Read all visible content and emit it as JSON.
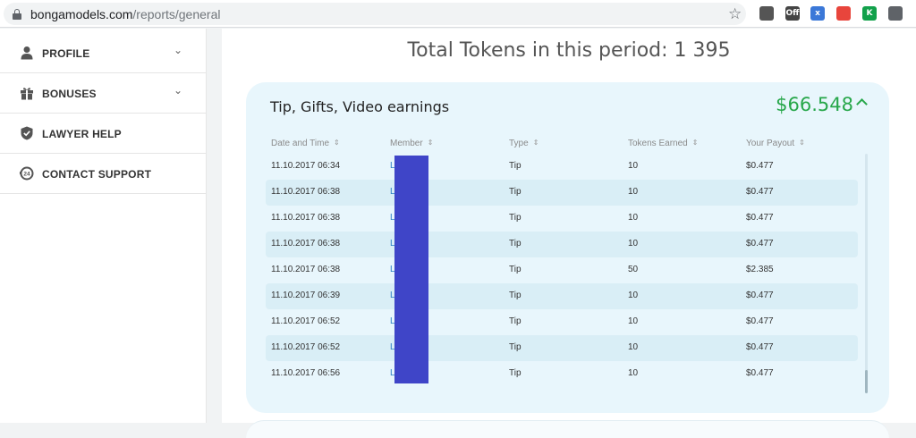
{
  "browser": {
    "url_domain": "bongamodels.com",
    "url_path": "/reports/general",
    "star_icon": "star-outline-icon",
    "extensions": [
      {
        "name": "reader-ext-icon",
        "label": "",
        "color": "#555555"
      },
      {
        "name": "adblock-off-ext-icon",
        "label": "Off",
        "color": "#444444"
      },
      {
        "name": "translate-ext-icon",
        "label": "x",
        "color": "#3b78d8"
      },
      {
        "name": "colorful-ext-icon",
        "label": "",
        "color": "#e8453c"
      },
      {
        "name": "k-ext-icon",
        "label": "K",
        "color": "#12a14b"
      },
      {
        "name": "shield-ext-icon",
        "label": "",
        "color": "#5f6368"
      }
    ]
  },
  "sidebar": {
    "items": [
      {
        "label": "PROFILE",
        "icon": "user-icon",
        "has_chevron": true
      },
      {
        "label": "BONUSES",
        "icon": "gift-icon",
        "has_chevron": true
      },
      {
        "label": "LAWYER HELP",
        "icon": "shield-icon",
        "has_chevron": false
      },
      {
        "label": "CONTACT SUPPORT",
        "icon": "support-24-icon",
        "has_chevron": false
      }
    ]
  },
  "main": {
    "total_label": "Total Tokens in this period: 1 395",
    "card": {
      "title": "Tip, Gifts, Video earnings",
      "amount": "$66.548",
      "caret_icon": "caret-up-icon",
      "accent_color": "#27a74a",
      "columns": [
        "Date and Time",
        "Member",
        "Type",
        "Tokens Earned",
        "Your Payout"
      ],
      "rows": [
        {
          "date": "11.10.2017 06:34",
          "member": "L       ck",
          "type": "Tip",
          "tokens": "10",
          "payout": "$0.477"
        },
        {
          "date": "11.10.2017 06:38",
          "member": "L       ck",
          "type": "Tip",
          "tokens": "10",
          "payout": "$0.477"
        },
        {
          "date": "11.10.2017 06:38",
          "member": "L       ck",
          "type": "Tip",
          "tokens": "10",
          "payout": "$0.477"
        },
        {
          "date": "11.10.2017 06:38",
          "member": "L       ck",
          "type": "Tip",
          "tokens": "10",
          "payout": "$0.477"
        },
        {
          "date": "11.10.2017 06:38",
          "member": "L       ck",
          "type": "Tip",
          "tokens": "50",
          "payout": "$2.385"
        },
        {
          "date": "11.10.2017 06:39",
          "member": "L       ck",
          "type": "Tip",
          "tokens": "10",
          "payout": "$0.477"
        },
        {
          "date": "11.10.2017 06:52",
          "member": "L       ck",
          "type": "Tip",
          "tokens": "10",
          "payout": "$0.477"
        },
        {
          "date": "11.10.2017 06:52",
          "member": "L       ck",
          "type": "Tip",
          "tokens": "10",
          "payout": "$0.477"
        },
        {
          "date": "11.10.2017 06:56",
          "member": "L       ck",
          "type": "Tip",
          "tokens": "10",
          "payout": "$0.477"
        }
      ]
    }
  }
}
